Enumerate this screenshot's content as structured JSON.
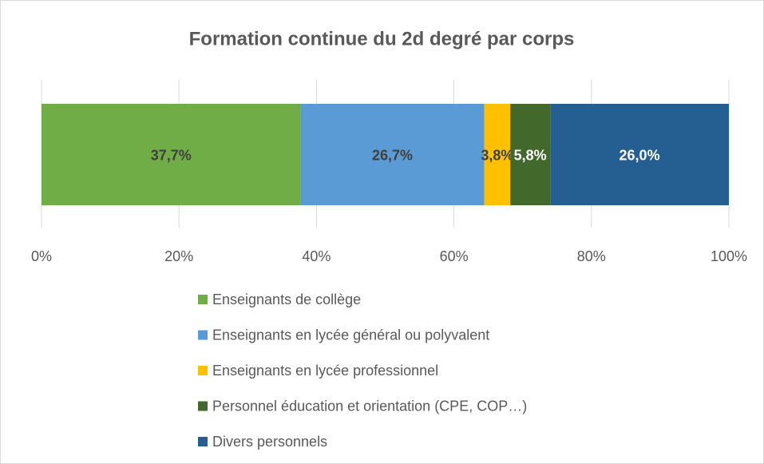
{
  "chart_data": {
    "type": "bar",
    "orientation": "horizontal",
    "stacked": true,
    "title": "Formation continue du 2d degré par corps",
    "categories": [
      null
    ],
    "series": [
      {
        "name": "Enseignants de collège",
        "color": "#70ad47",
        "values": [
          37.7
        ],
        "value_labels": [
          "37,7%"
        ]
      },
      {
        "name": "Enseignants en lycée général ou polyvalent",
        "color": "#5b9bd5",
        "values": [
          26.7
        ],
        "value_labels": [
          "26,7%"
        ]
      },
      {
        "name": "Enseignants en lycée professionnel",
        "color": "#ffc000",
        "values": [
          3.8
        ],
        "value_labels": [
          "3,8%"
        ]
      },
      {
        "name": "Personnel éducation et orientation (CPE, COP…)",
        "color": "#43682b",
        "values": [
          5.8
        ],
        "value_labels": [
          "5,8%"
        ]
      },
      {
        "name": "Divers personnels",
        "color": "#255e91",
        "values": [
          26.0
        ],
        "value_labels": [
          "26,0%"
        ]
      }
    ],
    "xlim": [
      0,
      100
    ],
    "xticks": [
      {
        "value": 0,
        "label": "0%"
      },
      {
        "value": 20,
        "label": "20%"
      },
      {
        "value": 40,
        "label": "40%"
      },
      {
        "value": 60,
        "label": "60%"
      },
      {
        "value": 80,
        "label": "80%"
      },
      {
        "value": 100,
        "label": "100%"
      }
    ],
    "grid": true,
    "legend": "bottom"
  }
}
